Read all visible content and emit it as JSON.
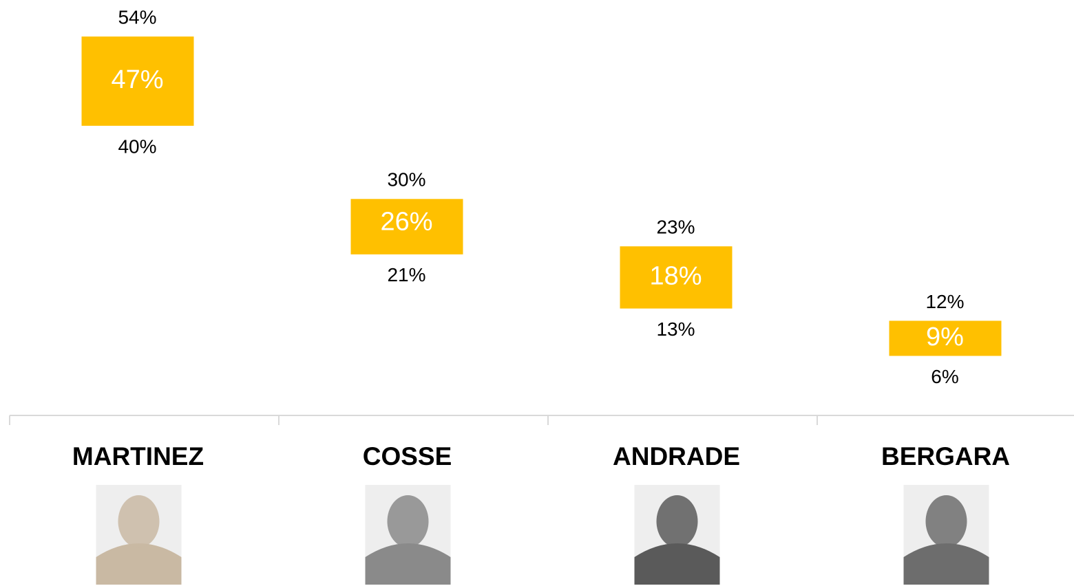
{
  "chart_data": {
    "type": "range",
    "categories": [
      "MARTINEZ",
      "COSSE",
      "ANDRADE",
      "BERGARA"
    ],
    "values": [
      47,
      26,
      18,
      9
    ],
    "value_labels": [
      "47%",
      "26%",
      "18%",
      "9%"
    ],
    "low": [
      40,
      21,
      13,
      6
    ],
    "low_labels": [
      "40%",
      "21%",
      "13%",
      "6%"
    ],
    "high": [
      54,
      30,
      23,
      12
    ],
    "high_labels": [
      "54%",
      "30%",
      "23%",
      "12%"
    ],
    "color": "#ffc000"
  }
}
